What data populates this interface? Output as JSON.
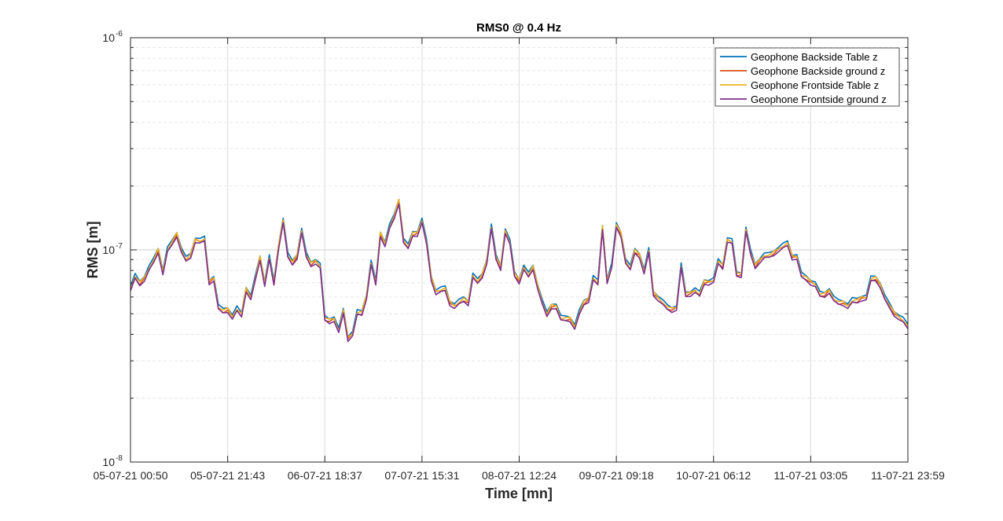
{
  "chart_data": {
    "type": "line",
    "title": "RMS0 @ 0.4 Hz",
    "xlabel": "Time [mn]",
    "ylabel": "RMS [m]",
    "yscale": "log",
    "ylim": [
      1e-08,
      1e-06
    ],
    "y_tick_labels": [
      {
        "base": "10",
        "exp": "-8",
        "value": 1e-08
      },
      {
        "base": "10",
        "exp": "-7",
        "value": 1e-07
      },
      {
        "base": "10",
        "exp": "-6",
        "value": 1e-06
      }
    ],
    "x_tick_labels": [
      "05-07-21 00:50",
      "05-07-21 21:43",
      "06-07-21 18:37",
      "07-07-21 15:31",
      "08-07-21 12:24",
      "09-07-21 09:18",
      "10-07-21 06:12",
      "11-07-21 03:05",
      "11-07-21 23:59"
    ],
    "grid": true,
    "legend_position": "top-right",
    "series": [
      {
        "name": "Geophone Backside Table z",
        "color": "#0072BD"
      },
      {
        "name": "Geophone Backside ground z",
        "color": "#D95319"
      },
      {
        "name": "Geophone Frontside Table z",
        "color": "#EDB120"
      },
      {
        "name": "Geophone Frontside ground z",
        "color": "#7E2F8E"
      }
    ],
    "base_values_e8": [
      6.5,
      7.4,
      6.9,
      7.3,
      8.1,
      8.8,
      9.9,
      7.8,
      9.9,
      10.7,
      11.8,
      9.9,
      8.9,
      9.3,
      11.1,
      10.9,
      11.1,
      7.0,
      7.3,
      5.3,
      5.1,
      5.2,
      4.8,
      5.2,
      4.9,
      6.5,
      5.9,
      7.3,
      9.1,
      6.9,
      9.1,
      6.9,
      10.3,
      13.7,
      9.3,
      8.6,
      9.3,
      12.2,
      9.3,
      8.5,
      8.8,
      8.3,
      4.7,
      4.6,
      4.7,
      4.1,
      5.1,
      3.8,
      4.0,
      5.0,
      5.0,
      6.0,
      8.6,
      6.9,
      11.8,
      10.6,
      12.7,
      14.2,
      16.9,
      11.0,
      10.2,
      11.8,
      11.9,
      13.6,
      10.7,
      7.3,
      6.3,
      6.4,
      6.5,
      5.6,
      5.4,
      5.6,
      5.8,
      5.6,
      7.5,
      7.0,
      7.5,
      8.8,
      12.7,
      9.1,
      8.2,
      12.2,
      10.7,
      7.6,
      7.1,
      8.2,
      7.5,
      8.2,
      6.7,
      5.6,
      4.9,
      5.4,
      5.4,
      4.7,
      4.7,
      4.7,
      4.3,
      5.0,
      5.6,
      5.8,
      7.3,
      6.9,
      12.7,
      7.1,
      8.3,
      12.9,
      11.8,
      8.8,
      8.1,
      9.8,
      9.4,
      7.8,
      9.8,
      6.2,
      5.9,
      5.6,
      5.3,
      5.2,
      5.3,
      8.3,
      6.1,
      6.2,
      6.4,
      6.1,
      7.0,
      7.0,
      7.1,
      8.7,
      8.3,
      11.1,
      10.8,
      7.6,
      7.6,
      12.4,
      9.6,
      8.3,
      8.9,
      9.3,
      9.3,
      9.6,
      10.0,
      10.3,
      10.6,
      9.2,
      9.2,
      7.5,
      7.3,
      7.0,
      6.8,
      6.1,
      6.1,
      6.4,
      5.8,
      5.6,
      5.6,
      5.4,
      5.7,
      5.7,
      5.9,
      5.9,
      7.2,
      7.3,
      6.8,
      5.9,
      5.4,
      5.0,
      4.8,
      4.6,
      4.3
    ]
  }
}
